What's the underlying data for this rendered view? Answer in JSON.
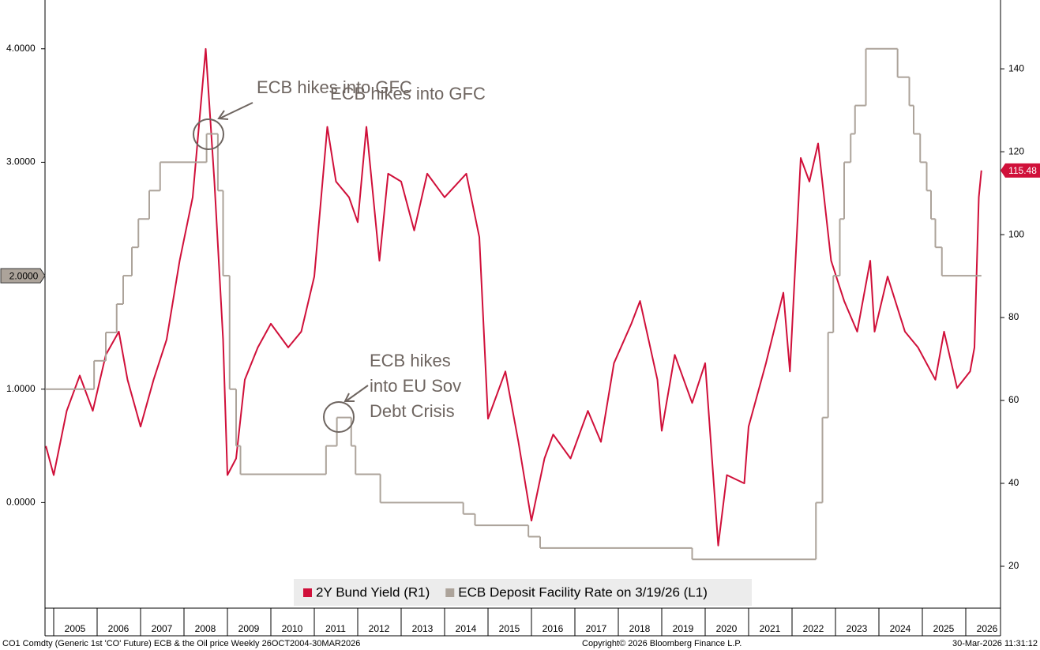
{
  "chart_data": {
    "type": "line",
    "legend": "bottom",
    "xlim": [
      2004.8,
      2026.8
    ],
    "xticks": [
      2005,
      2006,
      2007,
      2008,
      2009,
      2010,
      2011,
      2012,
      2013,
      2014,
      2015,
      2016,
      2017,
      2018,
      2019,
      2020,
      2021,
      2022,
      2023,
      2024,
      2025,
      2026
    ],
    "ylim": [
      -0.93,
      4.43
    ],
    "yticks": [
      {
        "value": 0,
        "label": "0.0000"
      },
      {
        "value": 1,
        "label": "1.0000"
      },
      {
        "value": 2,
        "label": "2.0000"
      },
      {
        "value": 3,
        "label": "3.0000"
      },
      {
        "value": 4,
        "label": "4.0000"
      }
    ],
    "y2lim": [
      9.9,
      156.6
    ],
    "y2ticks": [
      20,
      40,
      60,
      80,
      100,
      120,
      140
    ],
    "series": [
      {
        "name": "2Y Bund Yield (R1)",
        "color": "#d0103a",
        "axis": "y2",
        "end_label": "115.48",
        "x": [
          2004.82,
          2005.0,
          2005.3,
          2005.6,
          2005.9,
          2006.2,
          2006.5,
          2006.7,
          2007.0,
          2007.3,
          2007.6,
          2007.9,
          2008.2,
          2008.5,
          2008.7,
          2008.9,
          2009.0,
          2009.2,
          2009.4,
          2009.7,
          2010.0,
          2010.4,
          2010.7,
          2011.0,
          2011.3,
          2011.5,
          2011.8,
          2012.0,
          2012.2,
          2012.5,
          2012.7,
          2013.0,
          2013.3,
          2013.6,
          2014.0,
          2014.5,
          2014.8,
          2015.0,
          2015.4,
          2015.7,
          2016.0,
          2016.3,
          2016.5,
          2016.9,
          2017.3,
          2017.6,
          2017.9,
          2018.3,
          2018.5,
          2018.9,
          2019.0,
          2019.3,
          2019.7,
          2020.0,
          2020.3,
          2020.5,
          2020.9,
          2021.0,
          2021.4,
          2021.8,
          2021.95,
          2022.2,
          2022.4,
          2022.6,
          2022.9,
          2023.2,
          2023.5,
          2023.8,
          2023.9,
          2024.2,
          2024.6,
          2024.9,
          2025.3,
          2025.5,
          2025.8,
          2026.1,
          2026.2,
          2026.3,
          2026.36
        ],
        "values": [
          49,
          42,
          57.5,
          66,
          57.5,
          71,
          76.6,
          65,
          53.7,
          65,
          74.7,
          93.7,
          109,
          144.8,
          112.8,
          74.7,
          42,
          46,
          65,
          72.8,
          78.5,
          72.8,
          76.6,
          89.9,
          126,
          112.8,
          109,
          103,
          126,
          93.7,
          114.7,
          112.8,
          101,
          114.7,
          109,
          114.7,
          99.4,
          55.6,
          67,
          50,
          31,
          46,
          51.8,
          46,
          57.5,
          50,
          69,
          78.5,
          84,
          65,
          52.7,
          71,
          59.4,
          69,
          25,
          42,
          40,
          53.7,
          69,
          86,
          67,
          118.5,
          112.8,
          122,
          93.7,
          84,
          76.6,
          93.7,
          76.6,
          89.9,
          76.6,
          72.8,
          65,
          76.6,
          63,
          67,
          72.8,
          109,
          115.48
        ]
      },
      {
        "name": "ECB Deposit Facility Rate on 3/19/26 (L1)",
        "color": "#aca39a",
        "step": true,
        "end_label": "2.0000",
        "x": [
          2004.82,
          2005.93,
          2006.2,
          2006.45,
          2006.6,
          2006.8,
          2006.95,
          2007.2,
          2007.45,
          2008.52,
          2008.78,
          2008.9,
          2009.05,
          2009.2,
          2009.3,
          2011.27,
          2011.52,
          2011.85,
          2011.95,
          2012.52,
          2014.43,
          2014.7,
          2015.93,
          2016.2,
          2019.7,
          2022.55,
          2022.7,
          2022.83,
          2022.95,
          2023.1,
          2023.2,
          2023.35,
          2023.45,
          2023.7,
          2024.43,
          2024.7,
          2024.8,
          2024.95,
          2025.1,
          2025.2,
          2025.3,
          2025.45,
          2026.36
        ],
        "values": [
          1.0,
          1.25,
          1.5,
          1.75,
          2.0,
          2.25,
          2.5,
          2.75,
          3.0,
          3.25,
          2.75,
          2.0,
          1.0,
          0.5,
          0.25,
          0.5,
          0.75,
          0.5,
          0.25,
          0.0,
          -0.1,
          -0.2,
          -0.3,
          -0.4,
          -0.5,
          0.0,
          0.75,
          1.5,
          2.0,
          2.5,
          3.0,
          3.25,
          3.5,
          4.0,
          3.75,
          3.5,
          3.25,
          3.0,
          2.75,
          2.5,
          2.25,
          2.0,
          2.0
        ]
      }
    ],
    "annotations": [
      {
        "text": "ECB hikes into GFC"
      },
      {
        "text": "ECB hikes into GFC"
      },
      {
        "lines": [
          "ECB hikes",
          "into EU Sov",
          "Debt Crisis"
        ]
      }
    ],
    "footer_left": "CO1 Comdty (Generic 1st 'CO' Future) ECB & the Oil price Weekly 26OCT2004-30MAR2026",
    "footer_center": "Copyright© 2026 Bloomberg Finance L.P.",
    "footer_right": "30-Mar-2026 11:31:12"
  }
}
